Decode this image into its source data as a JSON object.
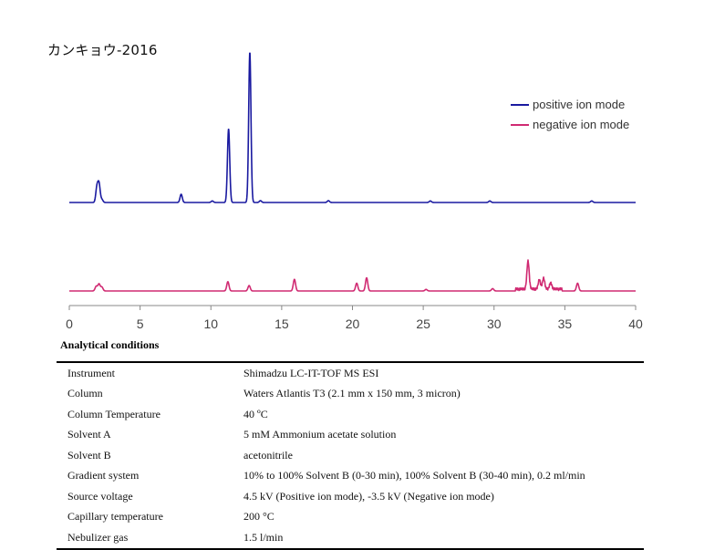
{
  "title": "カンキョウ-2016",
  "chart_data": {
    "type": "line",
    "xlim": [
      0,
      40
    ],
    "xticks": [
      0,
      5,
      10,
      15,
      20,
      25,
      30,
      35,
      40
    ],
    "series": [
      {
        "name": "positive ion mode",
        "color": "#1a1aa0",
        "peaks": [
          [
            1.95,
            0.1
          ],
          [
            2.1,
            0.12
          ],
          [
            2.3,
            0.02
          ],
          [
            7.9,
            0.055
          ],
          [
            10.1,
            0.01
          ],
          [
            11.25,
            0.49
          ],
          [
            12.75,
            1.0
          ],
          [
            13.5,
            0.012
          ],
          [
            18.3,
            0.012
          ],
          [
            25.5,
            0.01
          ],
          [
            29.7,
            0.01
          ],
          [
            36.9,
            0.01
          ]
        ]
      },
      {
        "name": "negative ion mode",
        "color": "#d02a72",
        "peaks": [
          [
            1.9,
            0.03
          ],
          [
            2.1,
            0.045
          ],
          [
            2.3,
            0.025
          ],
          [
            11.2,
            0.06
          ],
          [
            12.7,
            0.035
          ],
          [
            15.9,
            0.075
          ],
          [
            20.3,
            0.05
          ],
          [
            21.0,
            0.085
          ],
          [
            25.2,
            0.01
          ],
          [
            29.9,
            0.015
          ],
          [
            32.4,
            0.18
          ],
          [
            33.2,
            0.06
          ],
          [
            33.5,
            0.07
          ],
          [
            34.0,
            0.04
          ],
          [
            35.9,
            0.05
          ]
        ]
      }
    ]
  },
  "analytical": {
    "title": "Analytical conditions",
    "rows": [
      [
        "Instrument",
        "Shimadzu LC-IT-TOF MS ESI"
      ],
      [
        "Column",
        "Waters Atlantis T3 (2.1 mm x 150 mm, 3 micron)"
      ],
      [
        "Column Temperature",
        "40 ºC"
      ],
      [
        "Solvent A",
        "5 mM Ammonium acetate solution"
      ],
      [
        "Solvent B",
        "acetonitrile"
      ],
      [
        "Gradient system",
        "10% to 100% Solvent B (0-30 min), 100% Solvent B (30-40 min), 0.2 ml/min"
      ],
      [
        "Source voltage",
        "4.5 kV (Positive ion mode), -3.5 kV (Negative ion mode)"
      ],
      [
        "Capillary temperature",
        "200 °C"
      ],
      [
        "Nebulizer gas",
        "1.5 l/min"
      ]
    ]
  }
}
